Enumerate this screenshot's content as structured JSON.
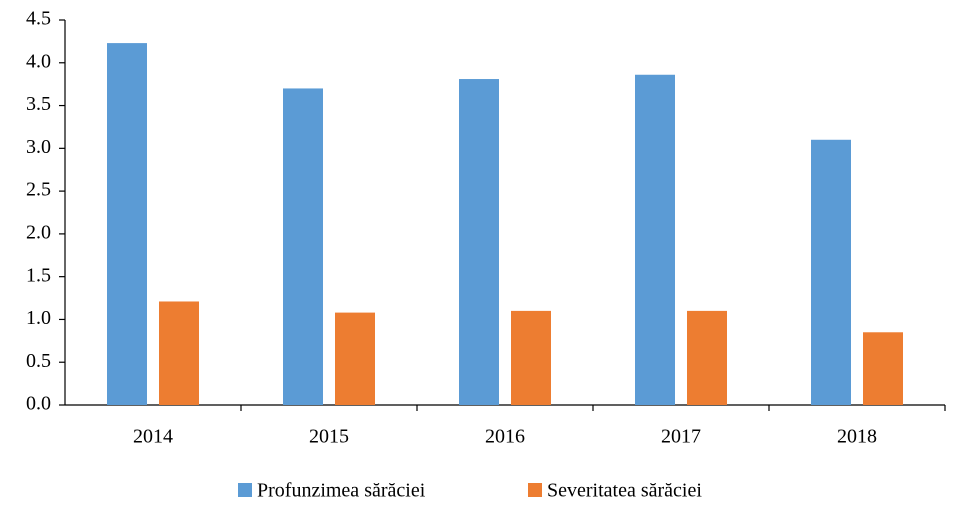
{
  "chart_data": {
    "type": "bar",
    "categories": [
      "2014",
      "2015",
      "2016",
      "2017",
      "2018"
    ],
    "series": [
      {
        "name": "Profunzimea sărăciei",
        "color": "#5b9bd5",
        "values": [
          4.23,
          3.7,
          3.81,
          3.86,
          3.1
        ]
      },
      {
        "name": "Severitatea sărăciei",
        "color": "#ed7d31",
        "values": [
          1.21,
          1.08,
          1.1,
          1.1,
          0.85
        ]
      }
    ],
    "ylim": [
      0,
      4.5
    ],
    "yticks": [
      {
        "value": 0,
        "label": "0.0"
      },
      0.5,
      {
        "value": 1,
        "label": "1.0"
      },
      1.5,
      {
        "value": 2,
        "label": "2.0"
      },
      2.5,
      {
        "value": 3,
        "label": "3.0"
      },
      3.5,
      {
        "value": 4,
        "label": "4.0"
      },
      4.5
    ],
    "grid": false,
    "legend": "bottom"
  }
}
